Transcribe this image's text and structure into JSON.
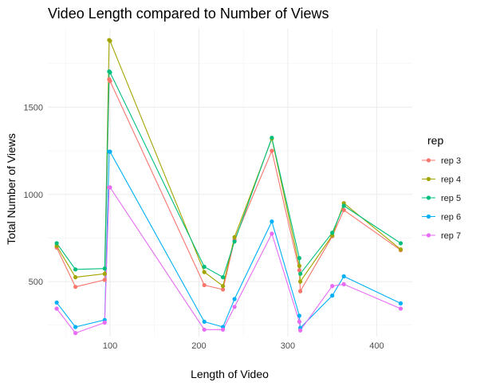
{
  "chart_data": {
    "type": "line",
    "title": "Video Length compared to Number of Views",
    "xlabel": "Length of Video",
    "ylabel": "Total Number of Views",
    "xlim": [
      30,
      440
    ],
    "ylim": [
      185,
      1950
    ],
    "x_ticks": [
      100,
      200,
      300,
      400
    ],
    "x_minor": [
      50,
      150,
      250,
      350
    ],
    "y_ticks": [
      500,
      1000,
      1500
    ],
    "y_minor": [
      250,
      750,
      1250,
      1750
    ],
    "grid": true,
    "legend_position": "right",
    "legend_title": "rep",
    "x": [
      40,
      61,
      94,
      99,
      100,
      206,
      227,
      240,
      282,
      313,
      314,
      350,
      363,
      427
    ],
    "series": [
      {
        "name": "rep 3",
        "color": "#F8766D",
        "values": [
          695,
          470,
          510,
          1660,
          1650,
          480,
          455,
          740,
          1250,
          565,
          445,
          760,
          910,
          680
        ]
      },
      {
        "name": "rep 4",
        "color": "#A3A500",
        "values": [
          705,
          525,
          545,
          1885,
          1880,
          555,
          475,
          755,
          1320,
          590,
          500,
          765,
          950,
          685
        ]
      },
      {
        "name": "rep 5",
        "color": "#00BF7D",
        "values": [
          720,
          570,
          575,
          1705,
          1700,
          585,
          525,
          730,
          1325,
          635,
          545,
          780,
          935,
          720
        ]
      },
      {
        "name": "rep 6",
        "color": "#00B0F6",
        "values": [
          380,
          240,
          280,
          1245,
          1245,
          270,
          240,
          400,
          845,
          305,
          235,
          420,
          530,
          375
        ]
      },
      {
        "name": "rep 7",
        "color": "#E76BF3",
        "values": [
          345,
          205,
          265,
          1040,
          1040,
          225,
          225,
          355,
          775,
          270,
          220,
          475,
          485,
          345
        ]
      }
    ]
  }
}
